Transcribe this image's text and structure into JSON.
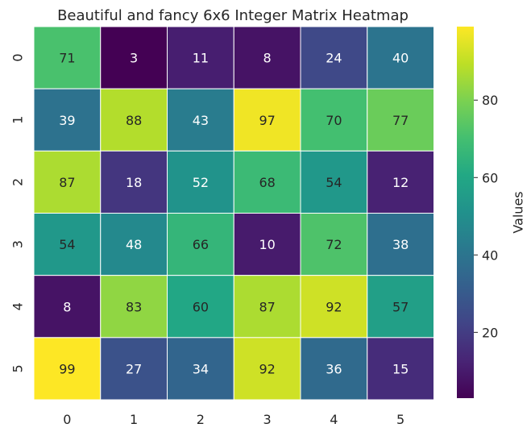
{
  "chart_data": {
    "type": "heatmap",
    "title": "Beautiful and fancy 6x6 Integer Matrix Heatmap",
    "x_categories": [
      "0",
      "1",
      "2",
      "3",
      "4",
      "5"
    ],
    "y_categories": [
      "0",
      "1",
      "2",
      "3",
      "4",
      "5"
    ],
    "values": [
      [
        71,
        3,
        11,
        8,
        24,
        40
      ],
      [
        39,
        88,
        43,
        97,
        70,
        77
      ],
      [
        87,
        18,
        52,
        68,
        54,
        12
      ],
      [
        54,
        48,
        66,
        10,
        72,
        38
      ],
      [
        8,
        83,
        60,
        87,
        92,
        57
      ],
      [
        99,
        27,
        34,
        92,
        36,
        15
      ]
    ],
    "annotated": true,
    "colormap": "viridis",
    "vmin": 3,
    "vmax": 99,
    "grid_line_color": "#ffffff",
    "colorbar": {
      "label": "Values",
      "ticks": [
        20,
        40,
        60,
        80
      ]
    }
  }
}
